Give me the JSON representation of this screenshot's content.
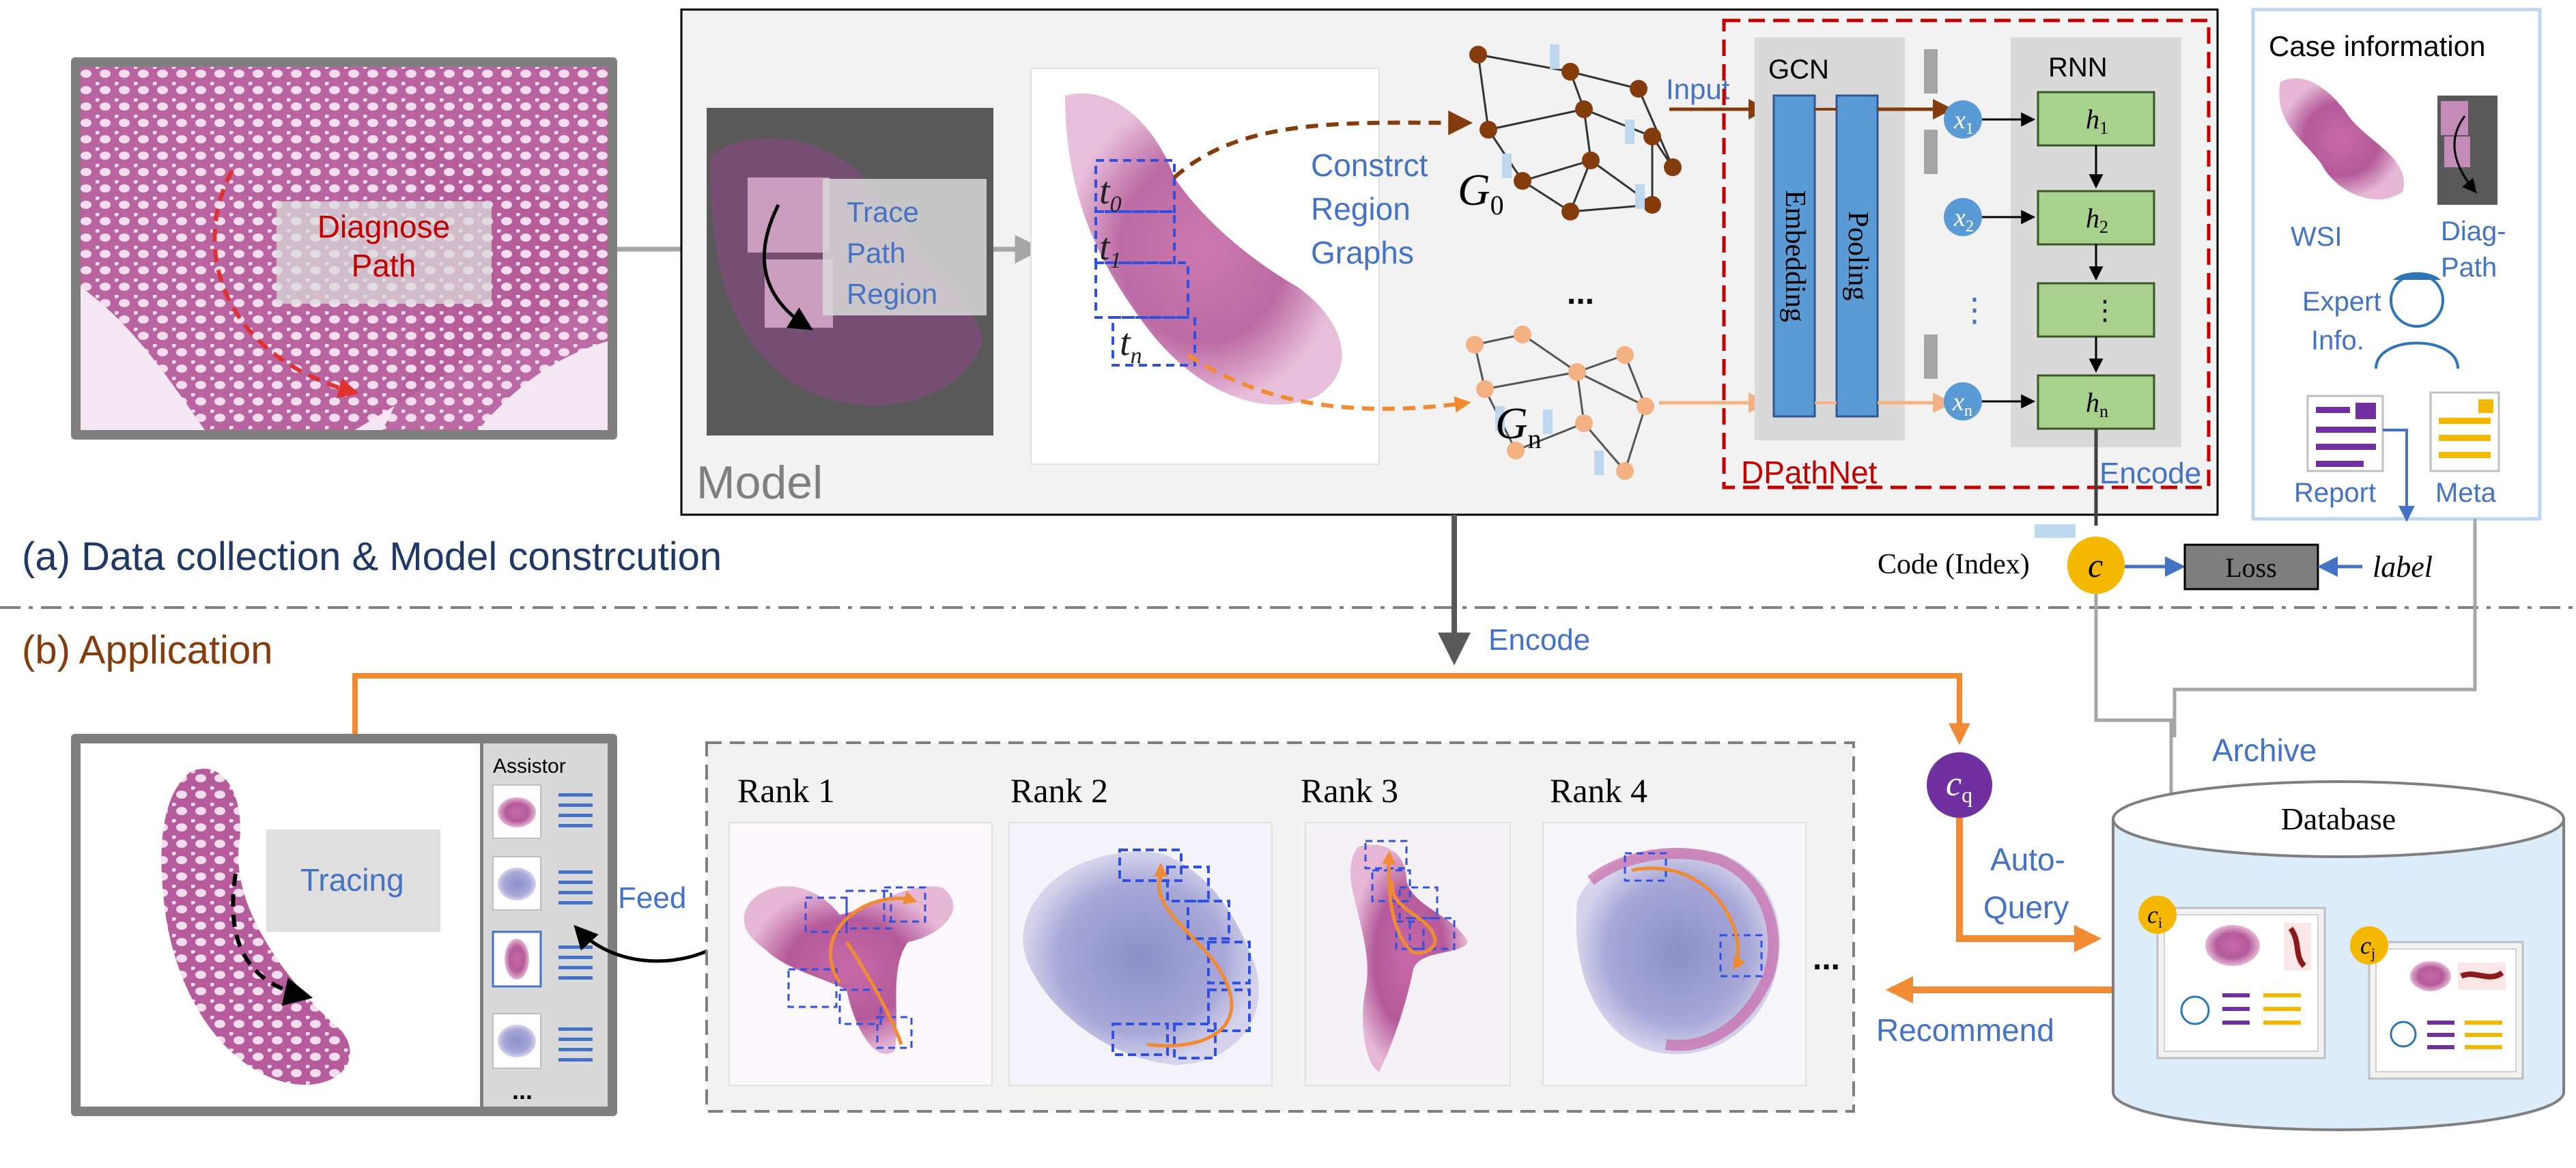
{
  "panel_a": {
    "diagnose_label": [
      "Diagnose",
      "Path"
    ],
    "model_box_label": "Model",
    "trace_label": [
      "Trace",
      "Path",
      "Region"
    ],
    "region_labels": [
      "t",
      "0",
      "t",
      "1",
      "t",
      "n"
    ],
    "construct_label": [
      "Constrct",
      "Region",
      "Graphs"
    ],
    "graph_labels": {
      "g0_main": "G",
      "g0_sub": "0",
      "gn_main": "G",
      "gn_sub": "n"
    },
    "ellipsis": "...",
    "input_label": "Input",
    "gcn_title": "GCN",
    "embedding_label": "Embedding",
    "pooling_label": "Pooling",
    "rnn_title": "RNN",
    "x_nodes": [
      {
        "main": "x",
        "sub": "1"
      },
      {
        "main": "x",
        "sub": "2"
      },
      {
        "main": "⋮",
        "sub": ""
      },
      {
        "main": "x",
        "sub": "n"
      }
    ],
    "h_cells": [
      {
        "main": "h",
        "sub": "1"
      },
      {
        "main": "h",
        "sub": "2"
      },
      {
        "main": "⋮",
        "sub": ""
      },
      {
        "main": "h",
        "sub": "n"
      }
    ],
    "dpathnet_label": "DPathNet",
    "encode_label": "Encode",
    "case_info": {
      "title": "Case information",
      "wsi": "WSI",
      "diag_path": [
        "Diag-",
        "Path"
      ],
      "expert": [
        "Expert",
        "Info."
      ],
      "report": "Report",
      "meta": "Meta"
    },
    "code_label": "Code (Index)",
    "code_symbol": "c",
    "loss_label": "Loss",
    "label_text": "label",
    "section_title": "(a) Data collection & Model constrcution"
  },
  "panel_b": {
    "section_title": "(b) Application",
    "encode_label": "Encode",
    "assistor_label": "Assistor",
    "tracing_label": "Tracing",
    "feed_label": "Feed",
    "ranks": [
      "Rank 1",
      "Rank 2",
      "Rank 3",
      "Rank 4"
    ],
    "more": "...",
    "cq": {
      "main": "c",
      "sub": "q"
    },
    "auto_query": [
      "Auto-",
      "Query"
    ],
    "recommend_label": "Recommend",
    "archive_label": "Archive",
    "database_label": "Database",
    "ci": {
      "main": "c",
      "sub": "i"
    },
    "cj": {
      "main": "c",
      "sub": "j"
    }
  },
  "colors": {
    "accent_orange": "#f08a33",
    "blue_text": "#4472c4",
    "dark_red": "#c00000",
    "brown": "#843c0c",
    "gcn_blue": "#5b9bd5",
    "rnn_green": "#a9d18e",
    "code_yellow": "#f5b800",
    "cq_purple": "#7030a0",
    "title_navy": "#1f3864",
    "app_brown": "#843c0c"
  }
}
